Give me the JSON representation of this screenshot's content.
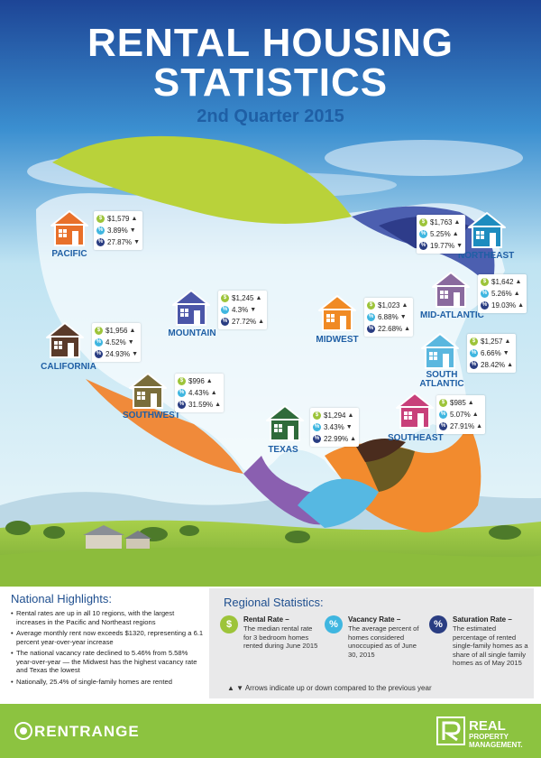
{
  "header": {
    "title_line1": "RENTAL HOUSING",
    "title_line2": "STATISTICS",
    "subtitle": "2nd Quarter 2015"
  },
  "colors": {
    "sky_top": "#1e4a9a",
    "sky_bottom": "#dff0f7",
    "title_blue": "#1f5fa5",
    "rent_dot": "#9dc43a",
    "vacancy_dot": "#3fb6e0",
    "saturation_dot": "#2a3d82",
    "footer_green": "#8cc340"
  },
  "regions": [
    {
      "name": "PACIFIC",
      "house_color": "#e8702a",
      "rent": "$1,579",
      "rent_dir": "▲",
      "vacancy": "3.89%",
      "vacancy_dir": "▼",
      "saturation": "27.87%",
      "saturation_dir": "▼"
    },
    {
      "name": "NORTHEAST",
      "house_color": "#1d8cbf",
      "rent": "$1,763",
      "rent_dir": "▲",
      "vacancy": "5.25%",
      "vacancy_dir": "▲",
      "saturation": "19.77%",
      "saturation_dir": "▼"
    },
    {
      "name": "MOUNTAIN",
      "house_color": "#4b56a8",
      "rent": "$1,245",
      "rent_dir": "▲",
      "vacancy": "4.3%",
      "vacancy_dir": "▼",
      "saturation": "27.72%",
      "saturation_dir": "▲"
    },
    {
      "name": "MIDWEST",
      "house_color": "#f08a24",
      "rent": "$1,023",
      "rent_dir": "▲",
      "vacancy": "6.88%",
      "vacancy_dir": "▼",
      "saturation": "22.68%",
      "saturation_dir": "▲"
    },
    {
      "name": "MID-ATLANTIC",
      "house_color": "#8a6a9e",
      "rent": "$1,642",
      "rent_dir": "▲",
      "vacancy": "5.26%",
      "vacancy_dir": "▲",
      "saturation": "19.03%",
      "saturation_dir": "▲"
    },
    {
      "name": "CALIFORNIA",
      "house_color": "#5a3a2a",
      "rent": "$1,956",
      "rent_dir": "▲",
      "vacancy": "4.52%",
      "vacancy_dir": "▼",
      "saturation": "24.93%",
      "saturation_dir": "▼"
    },
    {
      "name": "SOUTH ATLANTIC",
      "house_color": "#5ab7df",
      "rent": "$1,257",
      "rent_dir": "▲",
      "vacancy": "6.66%",
      "vacancy_dir": "▼",
      "saturation": "28.42%",
      "saturation_dir": "▲"
    },
    {
      "name": "SOUTHWEST",
      "house_color": "#7a6d3a",
      "rent": "$996",
      "rent_dir": "▲",
      "vacancy": "4.43%",
      "vacancy_dir": "▲",
      "saturation": "31.59%",
      "saturation_dir": "▲"
    },
    {
      "name": "TEXAS",
      "house_color": "#2f6b3a",
      "rent": "$1,294",
      "rent_dir": "▲",
      "vacancy": "3.43%",
      "vacancy_dir": "▼",
      "saturation": "22.99%",
      "saturation_dir": "▲"
    },
    {
      "name": "SOUTHEAST",
      "house_color": "#c8407a",
      "rent": "$985",
      "rent_dir": "▲",
      "vacancy": "5.07%",
      "vacancy_dir": "▲",
      "saturation": "27.91%",
      "saturation_dir": "▲"
    }
  ],
  "national": {
    "heading": "National Highlights:",
    "bullets": [
      "Rental rates are up in all 10 regions, with the largest increases in the Pacific and Northeast regions",
      "Average monthly rent now exceeds $1320, representing a 6.1 percent year-over-year increase",
      "The national vacancy rate declined to 5.46% from 5.58% year-over-year — the Midwest has the highest vacancy rate and Texas the lowest",
      "Nationally, 25.4% of single-family homes are rented"
    ]
  },
  "regional_stats": {
    "heading": "Regional Statistics:",
    "legend": [
      {
        "symbol": "$",
        "title": "Rental Rate –",
        "desc": "The median rental rate for 3 bedroom homes rented during June 2015",
        "color": "#9dc43a"
      },
      {
        "symbol": "%",
        "title": "Vacancy Rate –",
        "desc": "The average percent of homes considered unoccupied as of June 30, 2015",
        "color": "#3fb6e0"
      },
      {
        "symbol": "%",
        "title": "Saturation Rate –",
        "desc": "The estimated percentage of rented single-family homes as a share of all single family homes as of May 2015",
        "color": "#2a3d82"
      }
    ],
    "arrows_note": "▲ ▼  Arrows indicate up or down compared to the previous year"
  },
  "footer": {
    "left_brand": "RENTRANGE",
    "right_brand_line1": "REAL",
    "right_brand_line2": "PROPERTY MANAGEMENT."
  }
}
